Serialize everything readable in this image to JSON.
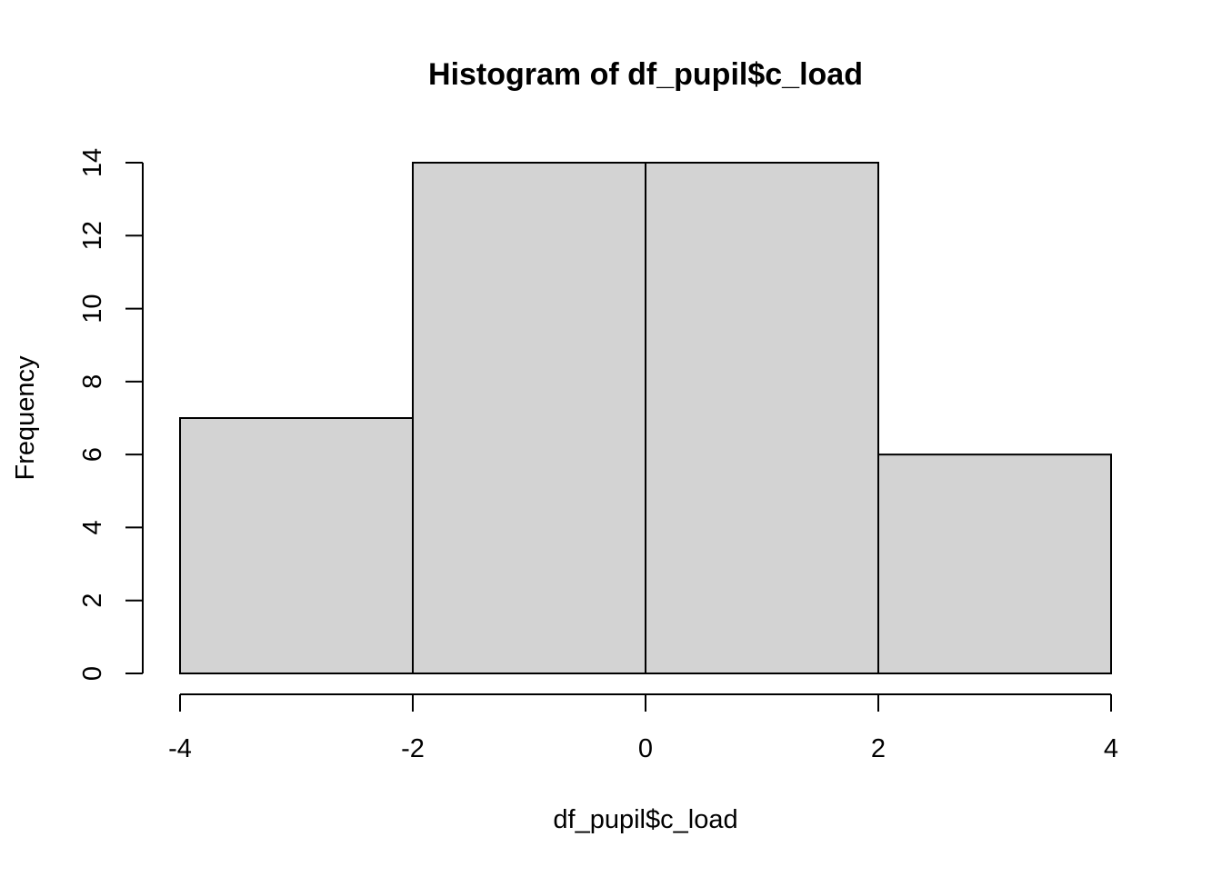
{
  "chart_data": {
    "type": "bar",
    "subtype": "histogram",
    "title": "Histogram of df_pupil$c_load",
    "xlabel": "df_pupil$c_load",
    "ylabel": "Frequency",
    "bins": [
      {
        "start": -4,
        "end": -2,
        "count": 7
      },
      {
        "start": -2,
        "end": 0,
        "count": 14
      },
      {
        "start": 0,
        "end": 2,
        "count": 14
      },
      {
        "start": 2,
        "end": 4,
        "count": 6
      }
    ],
    "x_ticks": [
      -4,
      -2,
      0,
      2,
      4
    ],
    "y_ticks": [
      0,
      2,
      4,
      6,
      8,
      10,
      12,
      14
    ],
    "xlim": [
      -4,
      4
    ],
    "ylim": [
      0,
      14
    ],
    "grid": false,
    "legend": "none",
    "bar_fill": "#d3d3d3",
    "bar_stroke": "#000000"
  }
}
